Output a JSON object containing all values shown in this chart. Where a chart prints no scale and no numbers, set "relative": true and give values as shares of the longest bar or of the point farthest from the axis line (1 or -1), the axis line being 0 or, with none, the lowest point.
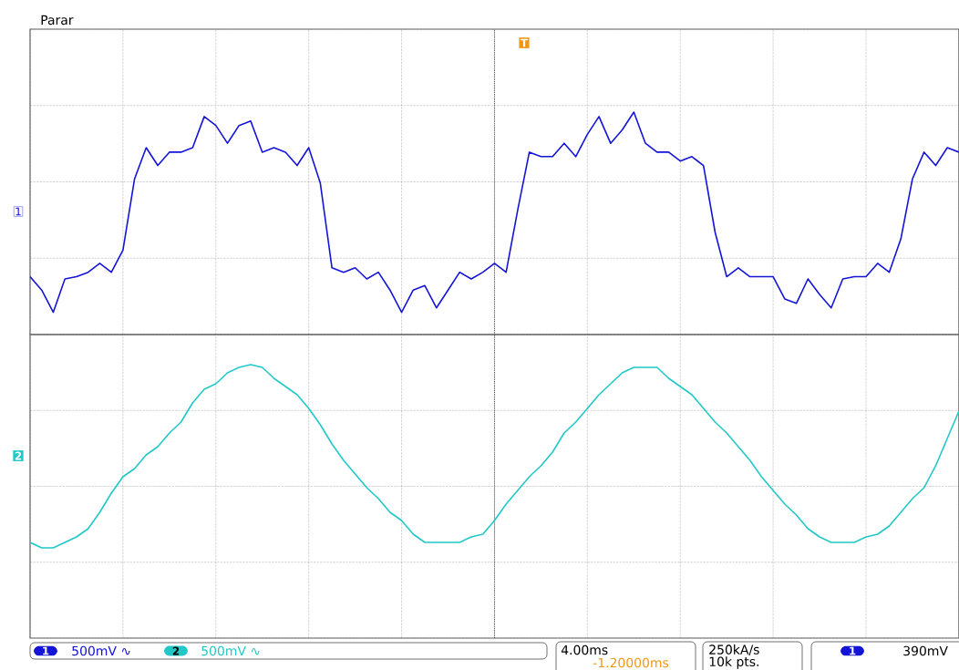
{
  "chart_data": [
    {
      "type": "line",
      "relative": true,
      "grid": true,
      "line_style": "solid",
      "marker": "none",
      "categories": [
        null,
        null,
        null,
        null,
        null,
        null,
        null,
        null,
        null,
        null,
        null,
        null,
        null,
        null,
        null,
        null,
        null,
        null,
        null,
        null,
        null,
        null,
        null,
        null,
        null,
        null,
        null,
        null,
        null,
        null,
        null,
        null,
        null,
        null,
        null,
        null,
        null,
        null,
        null,
        null,
        null,
        null,
        null,
        null,
        null,
        null,
        null,
        null,
        null,
        null,
        null,
        null,
        null,
        null,
        null,
        null,
        null,
        null,
        null,
        null,
        null,
        null,
        null,
        null,
        null,
        null,
        null,
        null,
        null,
        null,
        null,
        null,
        null,
        null,
        null,
        null,
        null,
        null,
        null,
        null,
        null
      ],
      "series": [
        {
          "color": "#1414d8",
          "values": [
            0.26,
            0.2,
            0.1,
            0.25,
            0.26,
            0.28,
            0.32,
            0.28,
            0.38,
            0.7,
            0.84,
            0.76,
            0.82,
            0.82,
            0.84,
            0.98,
            0.94,
            0.86,
            0.94,
            0.96,
            0.82,
            0.84,
            0.82,
            0.76,
            0.84,
            0.68,
            0.3,
            0.28,
            0.3,
            0.25,
            0.28,
            0.2,
            0.1,
            0.2,
            0.22,
            0.12,
            0.2,
            0.28,
            0.25,
            0.28,
            0.32,
            0.28,
            0.56,
            0.82,
            0.8,
            0.8,
            0.86,
            0.8,
            0.9,
            0.98,
            0.86,
            0.92,
            1,
            0.86,
            0.82,
            0.82,
            0.78,
            0.8,
            0.76,
            0.46,
            0.26,
            0.3,
            0.26,
            0.26,
            0.26,
            0.16,
            0.14,
            0.25,
            0.18,
            0.12,
            0.25,
            0.26,
            0.26,
            0.32,
            0.28,
            0.43,
            0.7,
            0.82,
            0.76,
            0.84,
            0.82
          ]
        }
      ],
      "annotations": [
        "Parar",
        "1",
        "T"
      ]
    },
    {
      "type": "line",
      "relative": true,
      "grid": true,
      "line_style": "solid",
      "marker": "none",
      "categories": [
        null,
        null,
        null,
        null,
        null,
        null,
        null,
        null,
        null,
        null,
        null,
        null,
        null,
        null,
        null,
        null,
        null,
        null,
        null,
        null,
        null,
        null,
        null,
        null,
        null,
        null,
        null,
        null,
        null,
        null,
        null,
        null,
        null,
        null,
        null,
        null,
        null,
        null,
        null,
        null,
        null,
        null,
        null,
        null,
        null,
        null,
        null,
        null,
        null,
        null,
        null,
        null,
        null,
        null,
        null,
        null,
        null,
        null,
        null,
        null,
        null,
        null,
        null,
        null,
        null,
        null,
        null,
        null,
        null,
        null,
        null,
        null,
        null,
        null,
        null,
        null,
        null,
        null,
        null,
        null,
        null
      ],
      "series": [
        {
          "color": "#22c8c8",
          "values": [
            0.35,
            0.33,
            0.33,
            0.35,
            0.37,
            0.4,
            0.46,
            0.53,
            0.59,
            0.62,
            0.67,
            0.7,
            0.75,
            0.79,
            0.86,
            0.91,
            0.93,
            0.97,
            0.99,
            1,
            0.99,
            0.95,
            0.92,
            0.89,
            0.84,
            0.78,
            0.71,
            0.65,
            0.6,
            0.55,
            0.51,
            0.46,
            0.43,
            0.38,
            0.35,
            0.35,
            0.35,
            0.35,
            0.37,
            0.38,
            0.43,
            0.49,
            0.54,
            0.59,
            0.63,
            0.68,
            0.75,
            0.79,
            0.84,
            0.89,
            0.93,
            0.97,
            0.99,
            0.99,
            0.99,
            0.95,
            0.92,
            0.89,
            0.84,
            0.79,
            0.75,
            0.7,
            0.65,
            0.59,
            0.54,
            0.49,
            0.45,
            0.4,
            0.37,
            0.35,
            0.35,
            0.35,
            0.37,
            0.38,
            0.41,
            0.46,
            0.51,
            0.55,
            0.63,
            0.73,
            0.83
          ]
        }
      ],
      "annotations": [
        "2",
        "1",
        "500mV ∿",
        "2",
        "500mV ∿",
        "4.00ms",
        "-1.20000ms",
        "250kA/s",
        "10k pts.",
        "1",
        "390mV"
      ]
    }
  ]
}
